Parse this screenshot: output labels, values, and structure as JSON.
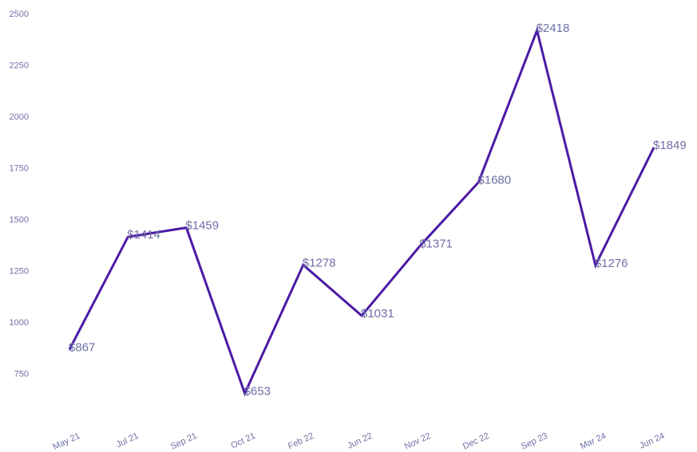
{
  "chart_data": {
    "type": "line",
    "title": "",
    "xlabel": "",
    "ylabel": "",
    "categories": [
      "May 21",
      "Jul 21",
      "Sep 21",
      "Oct 21",
      "Feb 22",
      "Jun 22",
      "Nov 22",
      "Dec 22",
      "Sep 23",
      "Mar 24",
      "Jun 24"
    ],
    "values": [
      867,
      1414,
      1459,
      653,
      1278,
      1031,
      1371,
      1680,
      2418,
      1276,
      1849
    ],
    "data_labels": [
      "$867",
      "$1414",
      "$1459",
      "$653",
      "$1278",
      "$1031",
      "$1371",
      "$1680",
      "$2418",
      "$1276",
      "$1849"
    ],
    "yticks": [
      750,
      1000,
      1250,
      1500,
      1750,
      2000,
      2250,
      2500
    ],
    "ylim": [
      500,
      2500
    ],
    "grid": false,
    "legend": "none",
    "colors": {
      "line": "#4b1aa6",
      "text": "#6f6fa8"
    }
  }
}
